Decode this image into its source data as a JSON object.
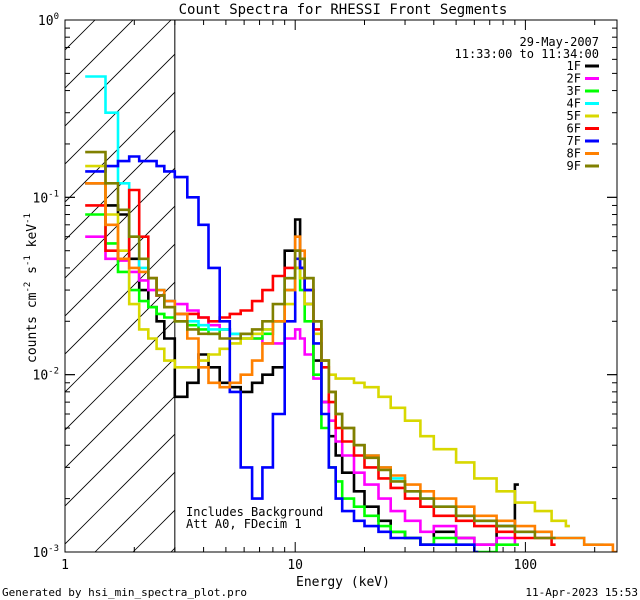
{
  "chart_data": {
    "type": "line",
    "title": "Count Spectra for RHESSI Front Segments",
    "xlabel": "Energy (keV)",
    "ylabel_parts": [
      "counts cm",
      "-2",
      " s",
      "-1",
      " keV",
      "-1"
    ],
    "xscale": "log",
    "yscale": "log",
    "xlim": [
      1,
      250
    ],
    "ylim": [
      0.001,
      1
    ],
    "x_ticks": [
      {
        "value": 1,
        "label": "1"
      },
      {
        "value": 10,
        "label": "10"
      },
      {
        "value": 100,
        "label": "100"
      }
    ],
    "y_ticks": [
      {
        "value": 0.001,
        "base": "10",
        "exp": "-3"
      },
      {
        "value": 0.01,
        "base": "10",
        "exp": "-2"
      },
      {
        "value": 0.1,
        "base": "10",
        "exp": "-1"
      },
      {
        "value": 1,
        "base": "10",
        "exp": "0"
      }
    ],
    "hatched_region": [
      1,
      3
    ],
    "date": "29-May-2007",
    "time_range": "11:33:00 to 11:34:00",
    "annotations": [
      "Includes Background",
      "Att A0, FDecim 1"
    ],
    "series": [
      {
        "name": "1F",
        "color": "#000000",
        "x": [
          1.3,
          1.5,
          1.7,
          1.9,
          2.1,
          2.3,
          2.5,
          2.7,
          3.0,
          3.4,
          3.8,
          4.2,
          4.7,
          5.2,
          5.8,
          6.5,
          7.2,
          8.0,
          9.0,
          10.0,
          10.5,
          11.0,
          12,
          13,
          14,
          15,
          16,
          18,
          20,
          23,
          26,
          30,
          35,
          40,
          50,
          60,
          75,
          90
        ],
        "y": [
          0.12,
          0.09,
          0.08,
          0.045,
          0.03,
          0.024,
          0.02,
          0.016,
          0.0075,
          0.009,
          0.013,
          0.011,
          0.009,
          0.0085,
          0.008,
          0.009,
          0.01,
          0.011,
          0.05,
          0.075,
          0.04,
          0.025,
          0.012,
          0.007,
          0.0045,
          0.0035,
          0.0028,
          0.0022,
          0.0018,
          0.0015,
          0.0013,
          0.0012,
          0.0011,
          0.0013,
          0.0012,
          0.0011,
          0.0014,
          0.0024
        ]
      },
      {
        "name": "2F",
        "color": "#ff00ff",
        "x": [
          1.3,
          1.5,
          1.7,
          1.9,
          2.1,
          2.3,
          2.5,
          2.7,
          3.0,
          3.4,
          3.8,
          4.2,
          4.7,
          5.2,
          5.8,
          6.5,
          7.2,
          8.0,
          9.0,
          10.0,
          10.5,
          11.0,
          12,
          13,
          14,
          15,
          16,
          18,
          20,
          23,
          26,
          30,
          35,
          40,
          50,
          60,
          75,
          90
        ],
        "y": [
          0.06,
          0.045,
          0.044,
          0.038,
          0.034,
          0.03,
          0.028,
          0.026,
          0.025,
          0.023,
          0.021,
          0.019,
          0.018,
          0.017,
          0.017,
          0.016,
          0.015,
          0.015,
          0.016,
          0.018,
          0.016,
          0.013,
          0.0095,
          0.007,
          0.0055,
          0.0042,
          0.0035,
          0.0028,
          0.0024,
          0.002,
          0.0017,
          0.0015,
          0.0013,
          0.0014,
          0.0012,
          0.0011,
          0.0012,
          0.0011
        ]
      },
      {
        "name": "3F",
        "color": "#00ff00",
        "x": [
          1.3,
          1.5,
          1.7,
          1.9,
          2.1,
          2.3,
          2.5,
          2.7,
          3.0,
          3.4,
          3.8,
          4.2,
          4.7,
          5.2,
          5.8,
          6.5,
          7.2,
          8.0,
          9.0,
          10.0,
          10.5,
          11.0,
          12,
          13,
          14,
          15,
          16,
          18,
          20,
          23,
          26,
          30,
          35,
          40,
          50,
          60,
          75,
          90
        ],
        "y": [
          0.08,
          0.055,
          0.038,
          0.03,
          0.026,
          0.024,
          0.022,
          0.021,
          0.02,
          0.019,
          0.018,
          0.017,
          0.018,
          0.017,
          0.016,
          0.016,
          0.017,
          0.02,
          0.03,
          0.04,
          0.03,
          0.02,
          0.01,
          0.005,
          0.003,
          0.0025,
          0.002,
          0.0018,
          0.0016,
          0.0014,
          0.0013,
          0.0012,
          0.0011,
          0.0012,
          0.0011,
          0.001,
          0.0011,
          0.0011
        ]
      },
      {
        "name": "4F",
        "color": "#00ffff",
        "x": [
          1.3,
          1.5,
          1.7,
          1.9,
          2.1,
          2.3,
          2.5,
          2.7,
          3.0,
          3.4,
          3.8,
          4.2,
          4.7,
          5.2,
          5.8,
          6.5,
          7.2,
          8.0,
          9.0,
          10.0,
          10.5,
          11.0,
          12,
          13,
          14,
          15,
          16,
          18,
          20,
          23,
          26,
          30,
          35,
          40,
          50,
          60,
          75,
          90,
          110,
          130,
          150,
          180,
          210
        ],
        "y": [
          0.48,
          0.3,
          0.12,
          0.06,
          0.04,
          0.035,
          0.03,
          0.026,
          0.022,
          0.02,
          0.019,
          0.018,
          0.018,
          0.017,
          0.017,
          0.017,
          0.018,
          0.02,
          0.035,
          0.05,
          0.045,
          0.035,
          0.02,
          0.012,
          0.008,
          0.006,
          0.005,
          0.004,
          0.0035,
          0.003,
          0.0026,
          0.0022,
          0.002,
          0.0018,
          0.0016,
          0.0015,
          0.0014,
          0.0013,
          0.0013,
          0.0012,
          0.0012,
          0.0011,
          0.0011
        ]
      },
      {
        "name": "5F",
        "color": "#d8d800",
        "x": [
          1.3,
          1.5,
          1.7,
          1.9,
          2.1,
          2.3,
          2.5,
          2.7,
          3.0,
          3.4,
          3.8,
          4.2,
          4.7,
          5.2,
          5.8,
          6.5,
          7.2,
          8.0,
          9.0,
          10.0,
          10.5,
          11.0,
          12,
          13,
          14,
          15,
          16,
          18,
          20,
          23,
          26,
          30,
          35,
          40,
          50,
          60,
          75,
          90,
          110,
          130,
          150
        ],
        "y": [
          0.15,
          0.08,
          0.05,
          0.025,
          0.018,
          0.016,
          0.014,
          0.012,
          0.011,
          0.011,
          0.012,
          0.013,
          0.014,
          0.015,
          0.016,
          0.017,
          0.018,
          0.02,
          0.025,
          0.04,
          0.035,
          0.025,
          0.017,
          0.012,
          0.01,
          0.0095,
          0.0095,
          0.009,
          0.0085,
          0.0075,
          0.0065,
          0.0055,
          0.0045,
          0.0038,
          0.0032,
          0.0026,
          0.0022,
          0.0019,
          0.0017,
          0.0015,
          0.0014
        ]
      },
      {
        "name": "6F",
        "color": "#ff0000",
        "x": [
          1.3,
          1.5,
          1.7,
          1.9,
          2.1,
          2.3,
          2.5,
          2.7,
          3.0,
          3.4,
          3.8,
          4.2,
          4.7,
          5.2,
          5.8,
          6.5,
          7.2,
          8.0,
          9.0,
          10.0,
          10.5,
          11.0,
          12,
          13,
          14,
          15,
          16,
          18,
          20,
          23,
          26,
          30,
          35,
          40,
          50,
          60,
          75,
          90,
          110,
          130
        ],
        "y": [
          0.09,
          0.05,
          0.045,
          0.11,
          0.06,
          0.035,
          0.028,
          0.024,
          0.022,
          0.022,
          0.021,
          0.02,
          0.021,
          0.022,
          0.023,
          0.026,
          0.03,
          0.036,
          0.04,
          0.05,
          0.04,
          0.03,
          0.018,
          0.011,
          0.007,
          0.005,
          0.0042,
          0.0035,
          0.003,
          0.0026,
          0.0023,
          0.002,
          0.0018,
          0.0016,
          0.0015,
          0.0014,
          0.0013,
          0.0012,
          0.0012,
          0.0011
        ]
      },
      {
        "name": "7F",
        "color": "#0000ff",
        "x": [
          1.3,
          1.5,
          1.7,
          1.9,
          2.1,
          2.3,
          2.5,
          2.7,
          3.0,
          3.4,
          3.8,
          4.2,
          4.7,
          5.2,
          5.8,
          6.5,
          7.2,
          8.0,
          9.0,
          10.0,
          10.5,
          11.0,
          12,
          13,
          14,
          15,
          16,
          18,
          20,
          23,
          26,
          30,
          35,
          40,
          50,
          60
        ],
        "y": [
          0.14,
          0.15,
          0.16,
          0.17,
          0.16,
          0.16,
          0.15,
          0.14,
          0.13,
          0.1,
          0.07,
          0.04,
          0.02,
          0.008,
          0.003,
          0.002,
          0.003,
          0.006,
          0.02,
          0.045,
          0.04,
          0.03,
          0.015,
          0.006,
          0.003,
          0.002,
          0.0017,
          0.0015,
          0.0014,
          0.0013,
          0.0012,
          0.0012,
          0.0011,
          0.0011,
          0.0011,
          0.001
        ]
      },
      {
        "name": "8F",
        "color": "#ff8000",
        "x": [
          1.3,
          1.5,
          1.7,
          1.9,
          2.1,
          2.3,
          2.5,
          2.7,
          3.0,
          3.4,
          3.8,
          4.2,
          4.7,
          5.2,
          5.8,
          6.5,
          7.2,
          8.0,
          9.0,
          10.0,
          10.5,
          11.0,
          12,
          13,
          14,
          15,
          16,
          18,
          20,
          23,
          26,
          30,
          35,
          40,
          50,
          60,
          75,
          90,
          110,
          130,
          150,
          180,
          210,
          240
        ],
        "y": [
          0.12,
          0.07,
          0.045,
          0.04,
          0.038,
          0.035,
          0.03,
          0.026,
          0.022,
          0.016,
          0.011,
          0.009,
          0.0085,
          0.009,
          0.01,
          0.012,
          0.015,
          0.02,
          0.03,
          0.06,
          0.05,
          0.035,
          0.02,
          0.012,
          0.008,
          0.006,
          0.005,
          0.004,
          0.0035,
          0.003,
          0.0027,
          0.0024,
          0.0022,
          0.002,
          0.0018,
          0.0016,
          0.0015,
          0.0014,
          0.0013,
          0.0012,
          0.0012,
          0.0011,
          0.0011,
          0.001
        ]
      },
      {
        "name": "9F",
        "color": "#808000",
        "x": [
          1.3,
          1.5,
          1.7,
          1.9,
          2.1,
          2.3,
          2.5,
          2.7,
          3.0,
          3.4,
          3.8,
          4.2,
          4.7,
          5.2,
          5.8,
          6.5,
          7.2,
          8.0,
          9.0,
          10.0,
          10.5,
          11.0,
          12,
          13,
          14,
          15,
          16,
          18,
          20,
          23,
          26,
          30,
          35,
          40,
          50,
          60,
          75,
          90,
          110,
          130
        ],
        "y": [
          0.18,
          0.12,
          0.085,
          0.06,
          0.045,
          0.035,
          0.028,
          0.024,
          0.02,
          0.018,
          0.017,
          0.017,
          0.016,
          0.016,
          0.017,
          0.018,
          0.02,
          0.025,
          0.035,
          0.05,
          0.045,
          0.035,
          0.02,
          0.012,
          0.008,
          0.006,
          0.005,
          0.004,
          0.0034,
          0.0029,
          0.0025,
          0.0022,
          0.002,
          0.0018,
          0.0016,
          0.0015,
          0.0014,
          0.0013,
          0.0012,
          0.0012
        ]
      }
    ]
  },
  "footer": {
    "left": "Generated by hsi_min_spectra_plot.pro",
    "right": "11-Apr-2023 15:53"
  }
}
